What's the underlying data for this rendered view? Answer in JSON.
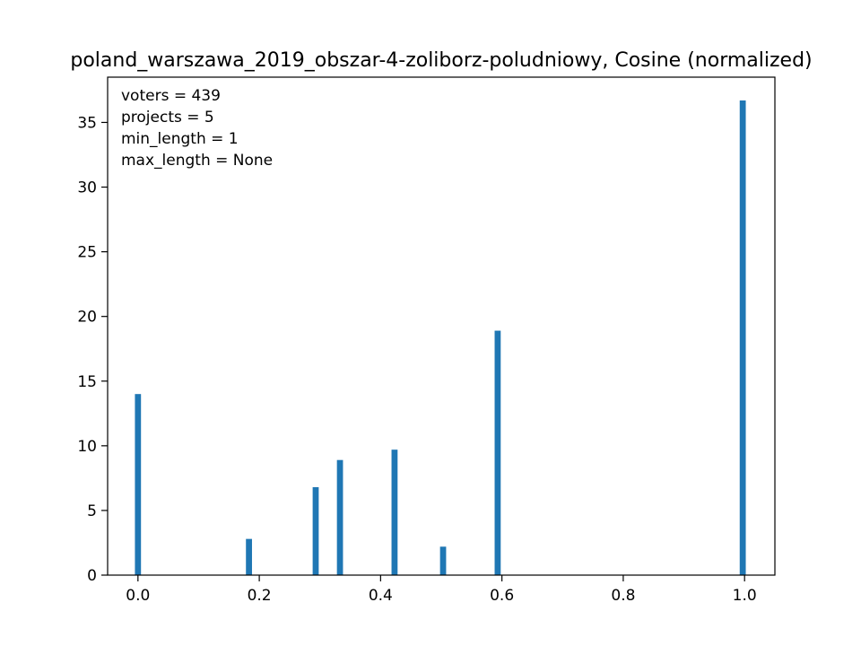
{
  "chart_data": {
    "type": "bar",
    "title": "poland_warszawa_2019_obszar-4-zoliborz-poludniowy, Cosine (normalized)",
    "xlabel": "",
    "ylabel": "",
    "xlim": [
      -0.05,
      1.05
    ],
    "ylim": [
      0,
      38.5
    ],
    "xticks": [
      0.0,
      0.2,
      0.4,
      0.6,
      0.8,
      1.0
    ],
    "xtick_labels": [
      "0.0",
      "0.2",
      "0.4",
      "0.6",
      "0.8",
      "1.0"
    ],
    "yticks": [
      0,
      5,
      10,
      15,
      20,
      25,
      30,
      35
    ],
    "ytick_labels": [
      "0",
      "5",
      "10",
      "15",
      "20",
      "25",
      "30",
      "35"
    ],
    "bin_width": 0.01,
    "bars": [
      {
        "x": 0.0,
        "value": 14.0
      },
      {
        "x": 0.183,
        "value": 2.8
      },
      {
        "x": 0.293,
        "value": 6.8
      },
      {
        "x": 0.333,
        "value": 8.9
      },
      {
        "x": 0.423,
        "value": 9.7
      },
      {
        "x": 0.503,
        "value": 2.2
      },
      {
        "x": 0.593,
        "value": 18.9
      },
      {
        "x": 0.997,
        "value": 36.7
      }
    ],
    "bar_color": "#1f77b4",
    "grid": false,
    "annotations": [
      "voters = 439",
      "projects = 5",
      "min_length = 1",
      "max_length = None"
    ]
  }
}
